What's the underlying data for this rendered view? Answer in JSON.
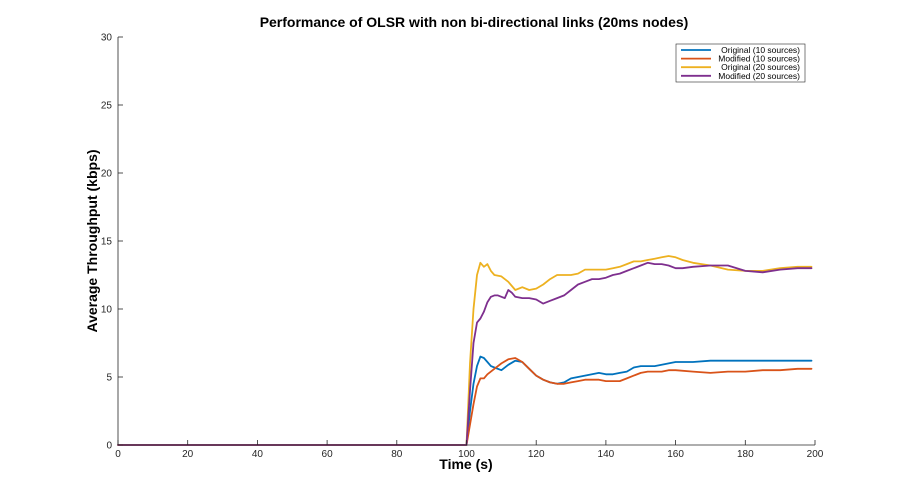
{
  "chart_data": {
    "type": "line",
    "title": "Performance of OLSR with non bi-directional links (20ms nodes)",
    "xlabel": "Time (s)",
    "ylabel": "Average Throughput (kbps)",
    "xlim": [
      0,
      200
    ],
    "ylim": [
      0,
      30
    ],
    "xticks": [
      0,
      20,
      40,
      60,
      80,
      100,
      120,
      140,
      160,
      180,
      200
    ],
    "yticks": [
      0,
      5,
      10,
      15,
      20,
      25,
      30
    ],
    "grid": false,
    "legend_position": "top-right",
    "series": [
      {
        "name": "Original (10 sources)",
        "color": "#0072BD",
        "x": [
          0,
          100,
          101,
          102,
          103,
          104,
          105,
          106,
          107,
          108,
          110,
          112,
          114,
          116,
          118,
          120,
          122,
          124,
          126,
          128,
          130,
          132,
          134,
          136,
          138,
          140,
          142,
          144,
          146,
          148,
          150,
          152,
          154,
          156,
          158,
          160,
          165,
          170,
          175,
          180,
          185,
          190,
          195,
          199
        ],
        "y": [
          0,
          0,
          2.5,
          4.5,
          5.8,
          6.5,
          6.4,
          6.1,
          5.8,
          5.7,
          5.5,
          5.9,
          6.2,
          6.1,
          5.6,
          5.1,
          4.8,
          4.6,
          4.5,
          4.6,
          4.9,
          5.0,
          5.1,
          5.2,
          5.3,
          5.2,
          5.2,
          5.3,
          5.4,
          5.7,
          5.8,
          5.8,
          5.8,
          5.9,
          6.0,
          6.1,
          6.1,
          6.2,
          6.2,
          6.2,
          6.2,
          6.2,
          6.2,
          6.2
        ]
      },
      {
        "name": "Modified (10 sources)",
        "color": "#D95319",
        "x": [
          0,
          100,
          101,
          102,
          103,
          104,
          105,
          106,
          108,
          110,
          112,
          114,
          116,
          118,
          120,
          122,
          124,
          126,
          128,
          130,
          132,
          134,
          136,
          138,
          140,
          142,
          144,
          146,
          148,
          150,
          152,
          154,
          156,
          158,
          160,
          165,
          170,
          175,
          180,
          185,
          190,
          195,
          199
        ],
        "y": [
          0,
          0,
          1.5,
          3.0,
          4.3,
          4.9,
          4.9,
          5.2,
          5.6,
          6.0,
          6.3,
          6.4,
          6.1,
          5.6,
          5.1,
          4.8,
          4.6,
          4.5,
          4.5,
          4.6,
          4.7,
          4.8,
          4.8,
          4.8,
          4.7,
          4.7,
          4.7,
          4.9,
          5.1,
          5.3,
          5.4,
          5.4,
          5.4,
          5.5,
          5.5,
          5.4,
          5.3,
          5.4,
          5.4,
          5.5,
          5.5,
          5.6,
          5.6
        ]
      },
      {
        "name": "Original (20 sources)",
        "color": "#EDB120",
        "x": [
          0,
          100,
          101,
          102,
          103,
          104,
          105,
          106,
          107,
          108,
          110,
          112,
          114,
          116,
          118,
          120,
          122,
          124,
          126,
          128,
          130,
          132,
          134,
          136,
          138,
          140,
          142,
          144,
          146,
          148,
          150,
          152,
          154,
          156,
          158,
          160,
          162,
          165,
          170,
          175,
          180,
          185,
          190,
          195,
          199
        ],
        "y": [
          0,
          0,
          6.0,
          10.0,
          12.5,
          13.4,
          13.1,
          13.3,
          12.8,
          12.5,
          12.4,
          12.0,
          11.4,
          11.6,
          11.4,
          11.5,
          11.8,
          12.2,
          12.5,
          12.5,
          12.5,
          12.6,
          12.9,
          12.9,
          12.9,
          12.9,
          13.0,
          13.1,
          13.3,
          13.5,
          13.5,
          13.6,
          13.7,
          13.8,
          13.9,
          13.8,
          13.6,
          13.4,
          13.2,
          12.9,
          12.8,
          12.8,
          13.0,
          13.1,
          13.1
        ]
      },
      {
        "name": "Modified (20 sources)",
        "color": "#7E2F8E",
        "x": [
          0,
          100,
          101,
          102,
          103,
          104,
          105,
          106,
          107,
          108,
          109,
          110,
          111,
          112,
          113,
          114,
          116,
          118,
          120,
          122,
          124,
          126,
          128,
          130,
          132,
          134,
          136,
          138,
          140,
          142,
          144,
          146,
          148,
          150,
          152,
          154,
          156,
          158,
          160,
          162,
          165,
          170,
          175,
          180,
          185,
          190,
          195,
          199
        ],
        "y": [
          0,
          0,
          4.0,
          7.5,
          9.0,
          9.3,
          9.8,
          10.5,
          10.9,
          11.0,
          11.0,
          10.9,
          10.8,
          11.4,
          11.2,
          10.9,
          10.8,
          10.8,
          10.7,
          10.4,
          10.6,
          10.8,
          11.0,
          11.4,
          11.8,
          12.0,
          12.2,
          12.2,
          12.3,
          12.5,
          12.6,
          12.8,
          13.0,
          13.2,
          13.4,
          13.3,
          13.3,
          13.2,
          13.0,
          13.0,
          13.1,
          13.2,
          13.2,
          12.8,
          12.7,
          12.9,
          13.0,
          13.0
        ]
      }
    ]
  }
}
